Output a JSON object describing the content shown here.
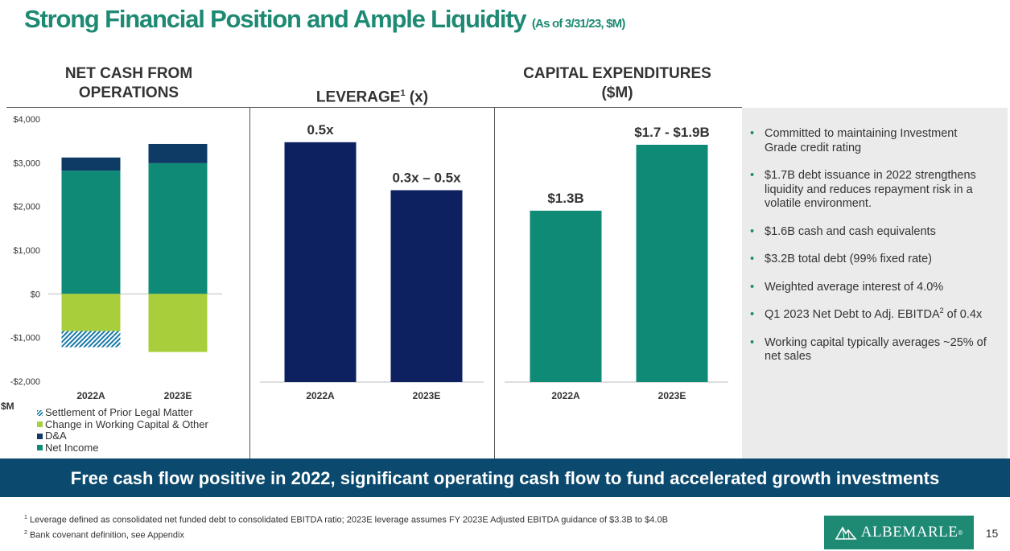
{
  "header": {
    "title": "Strong Financial Position and Ample Liquidity",
    "subtitle": "(As of 3/31/23, $M)"
  },
  "chart_heads": {
    "net_cash_line1": "NET CASH FROM",
    "net_cash_line2": "OPERATIONS",
    "leverage": "LEVERAGE",
    "leverage_sup": "1",
    "leverage_unit": " (x)",
    "capex_line1": "CAPITAL EXPENDITURES",
    "capex_line2": "($M)"
  },
  "unit_label": "$M",
  "colors": {
    "teal": "#0f8a77",
    "navy": "#0d3b66",
    "lime": "#a8cf3b",
    "hatch": "#1779a8",
    "leverage_bar": "#0d2060",
    "banner": "#0b4a6e",
    "brand": "#1e8a74"
  },
  "chart_data": [
    {
      "type": "bar",
      "stacked": true,
      "categories": [
        "2022A",
        "2023E"
      ],
      "ylim": [
        -2000,
        4000
      ],
      "y_ticks": [
        -2000,
        -1000,
        0,
        1000,
        2000,
        3000,
        4000
      ],
      "y_tick_labels": [
        "-$2,000",
        "-$1,000",
        "$0",
        "$1,000",
        "$2,000",
        "$3,000",
        "$4,000"
      ],
      "series": [
        {
          "name": "Settlement of Prior Legal Matter",
          "values": [
            -370,
            0
          ]
        },
        {
          "name": "Change in Working Capital & Other",
          "values": [
            -850,
            -1330
          ]
        },
        {
          "name": "D&A",
          "values": [
            300,
            440
          ]
        },
        {
          "name": "Net Income",
          "values": [
            2820,
            2990
          ]
        }
      ]
    },
    {
      "type": "bar",
      "categories": [
        "2022A",
        "2023E"
      ],
      "values": [
        0.5,
        0.4
      ],
      "ylim": [
        0,
        0.55
      ],
      "data_labels": [
        "0.5x",
        "0.3x – 0.5x"
      ]
    },
    {
      "type": "bar",
      "categories": [
        "2022A",
        "2023E"
      ],
      "values": [
        1.3,
        1.8
      ],
      "ylim": [
        0,
        2.05
      ],
      "data_labels": [
        "$1.3B",
        "$1.7 - $1.9B"
      ]
    }
  ],
  "bullets": [
    "Committed to maintaining Investment Grade credit rating",
    "$1.7B debt issuance in 2022 strengthens liquidity and reduces repayment risk in a volatile environment.",
    "$1.6B cash and cash equivalents",
    "$3.2B total debt (99% fixed rate)",
    "Weighted average interest of 4.0%",
    {
      "pre": "Q1 2023 Net Debt to Adj. EBITDA",
      "sup": "2",
      "post": " of 0.4x"
    },
    "Working capital typically averages ~25% of net sales"
  ],
  "banner": "Free cash flow positive in 2022, significant operating cash flow to fund accelerated growth investments",
  "footnotes": [
    {
      "num": "1",
      "text": " Leverage defined as consolidated net funded debt to consolidated EBITDA ratio; 2023E leverage assumes FY 2023E Adjusted EBITDA guidance of $3.3B to $4.0B"
    },
    {
      "num": "2",
      "text": " Bank covenant definition, see Appendix"
    }
  ],
  "logo": {
    "text": "ALBEMARLE",
    "mark": "®"
  },
  "page_number": "15"
}
